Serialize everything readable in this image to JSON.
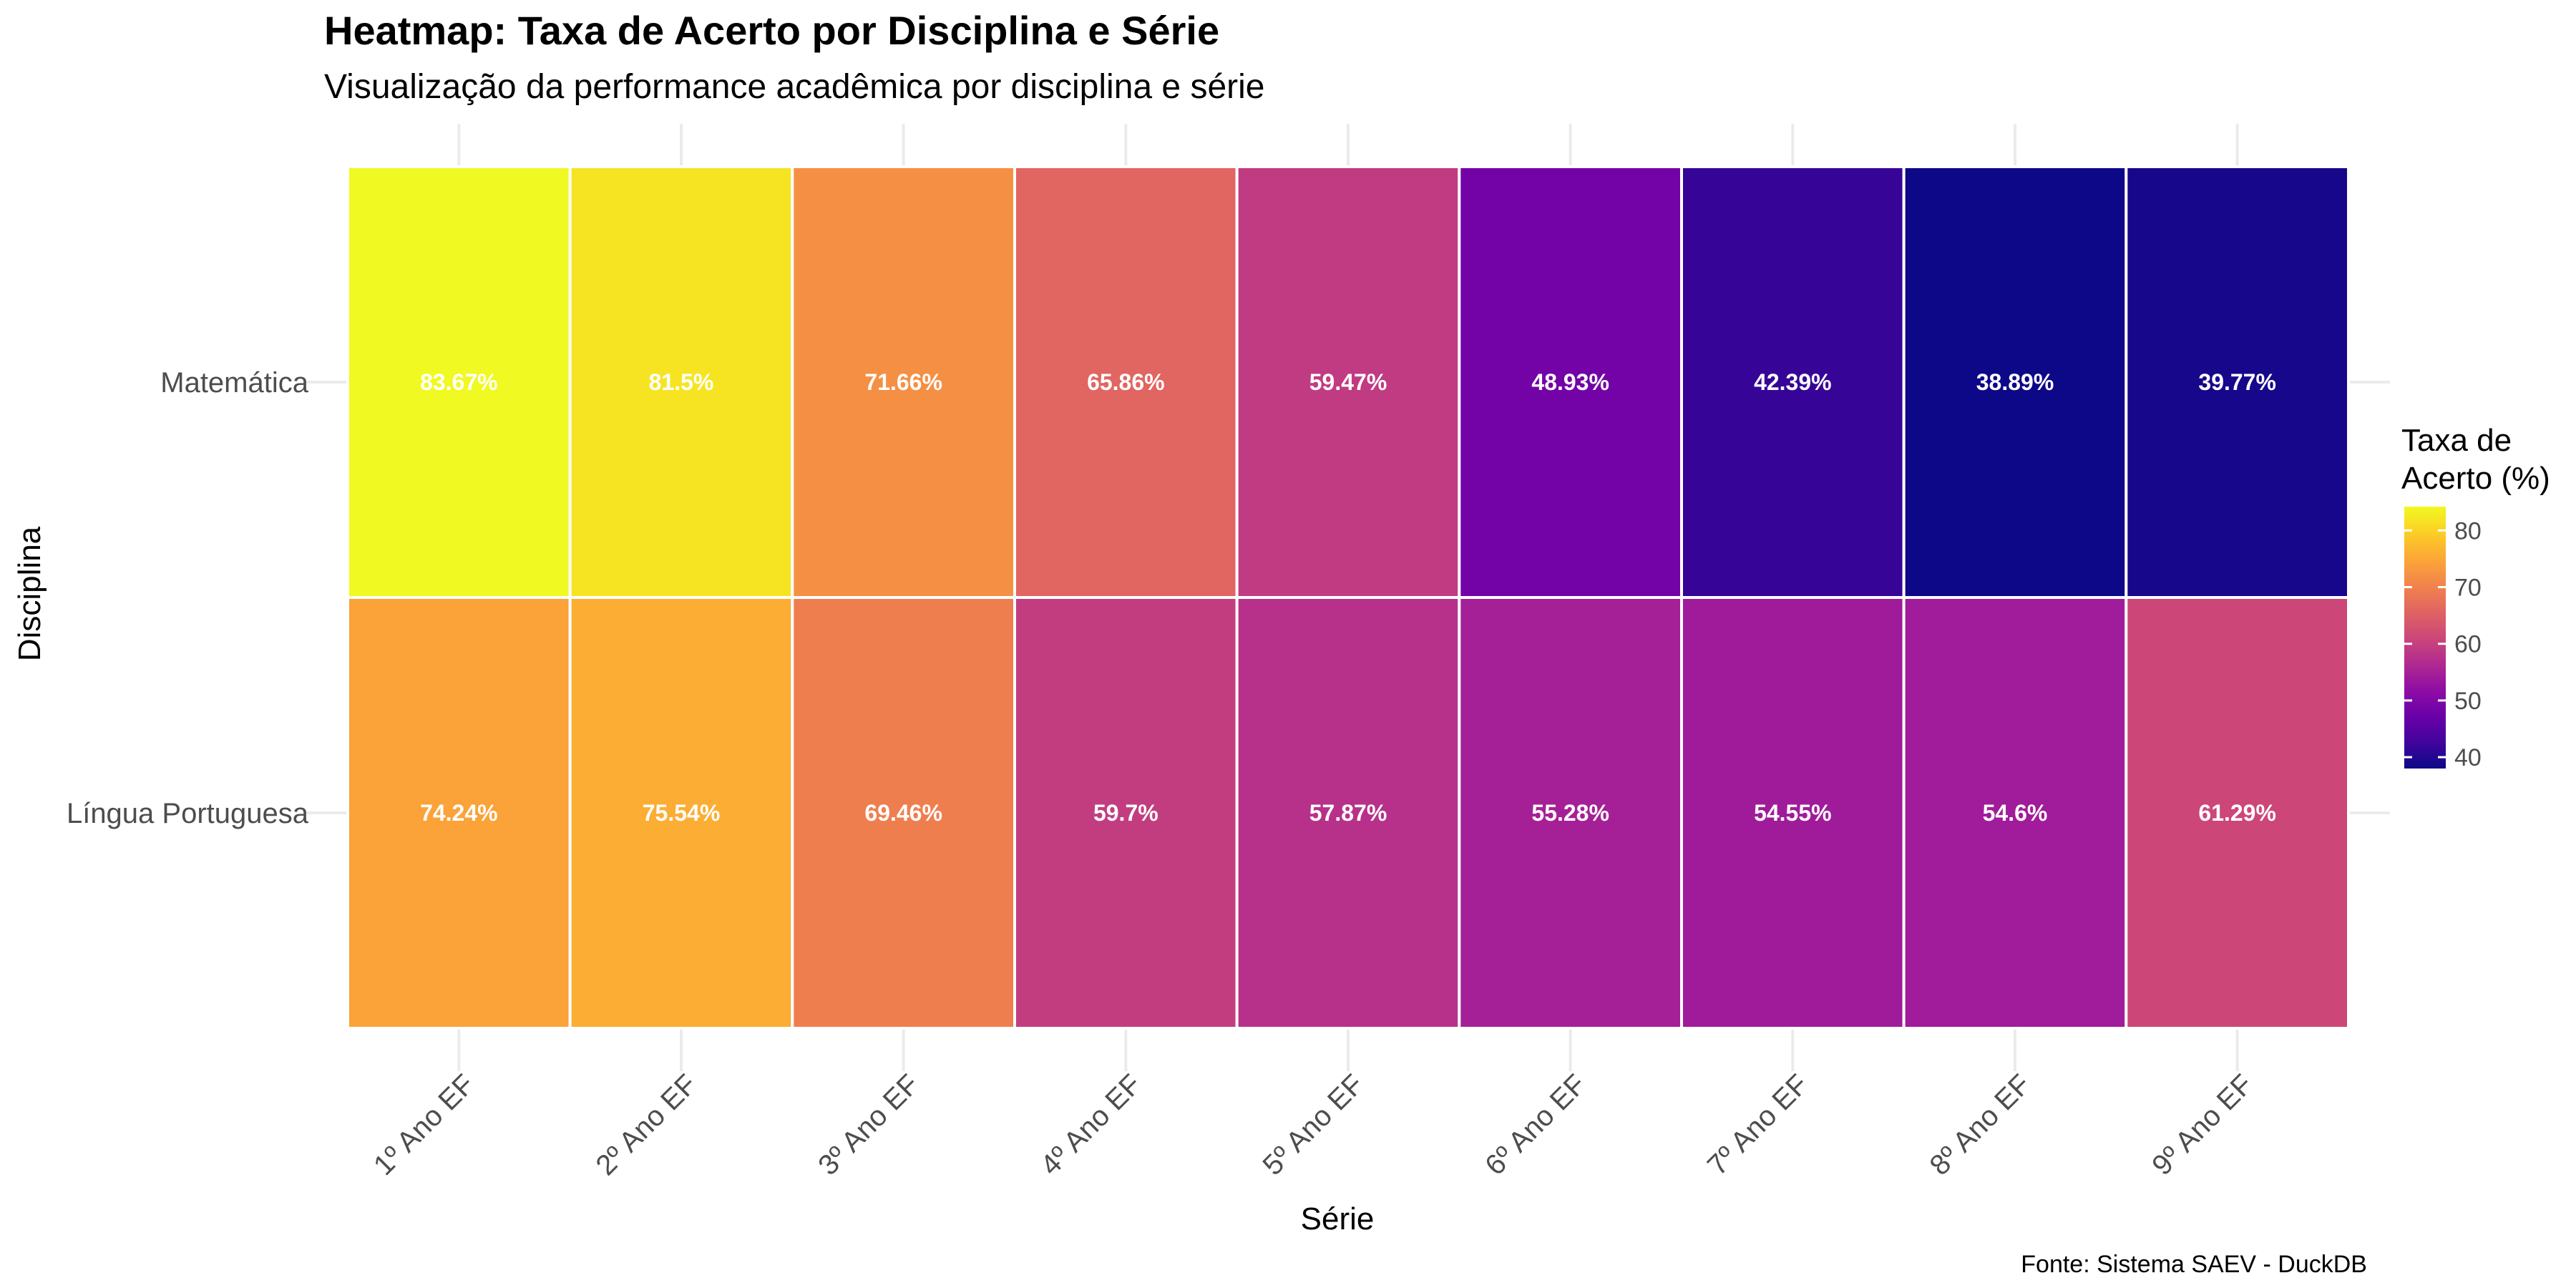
{
  "chart_data": {
    "type": "heatmap",
    "title": "Heatmap: Taxa de Acerto por Disciplina e Série",
    "subtitle": "Visualização da performance acadêmica por disciplina e série",
    "xlabel": "Série",
    "ylabel": "Disciplina",
    "caption": "Fonte: Sistema SAEV - DuckDB",
    "x_categories": [
      "1º Ano EF",
      "2º Ano EF",
      "3º Ano EF",
      "4º Ano EF",
      "5º Ano EF",
      "6º Ano EF",
      "7º Ano EF",
      "8º Ano EF",
      "9º Ano EF"
    ],
    "y_categories": [
      "Matemática",
      "Língua Portuguesa"
    ],
    "values": [
      [
        83.67,
        81.5,
        71.66,
        65.86,
        59.47,
        48.93,
        42.39,
        38.89,
        39.77
      ],
      [
        74.24,
        75.54,
        69.46,
        59.7,
        57.87,
        55.28,
        54.55,
        54.6,
        61.29
      ]
    ],
    "cell_labels": [
      [
        "83.67%",
        "81.5%",
        "71.66%",
        "65.86%",
        "59.47%",
        "48.93%",
        "42.39%",
        "38.89%",
        "39.77%"
      ],
      [
        "74.24%",
        "75.54%",
        "69.46%",
        "59.7%",
        "57.87%",
        "55.28%",
        "54.55%",
        "54.6%",
        "61.29%"
      ]
    ],
    "colorscale": "plasma",
    "value_range": [
      38.89,
      83.67
    ],
    "legend": {
      "title_lines": [
        "Taxa de",
        "Acerto (%)"
      ],
      "ticks": [
        80,
        70,
        60,
        50,
        40
      ],
      "tick_labels": [
        "80",
        "70",
        "60",
        "50",
        "40"
      ],
      "position": "right"
    },
    "grid": true
  }
}
